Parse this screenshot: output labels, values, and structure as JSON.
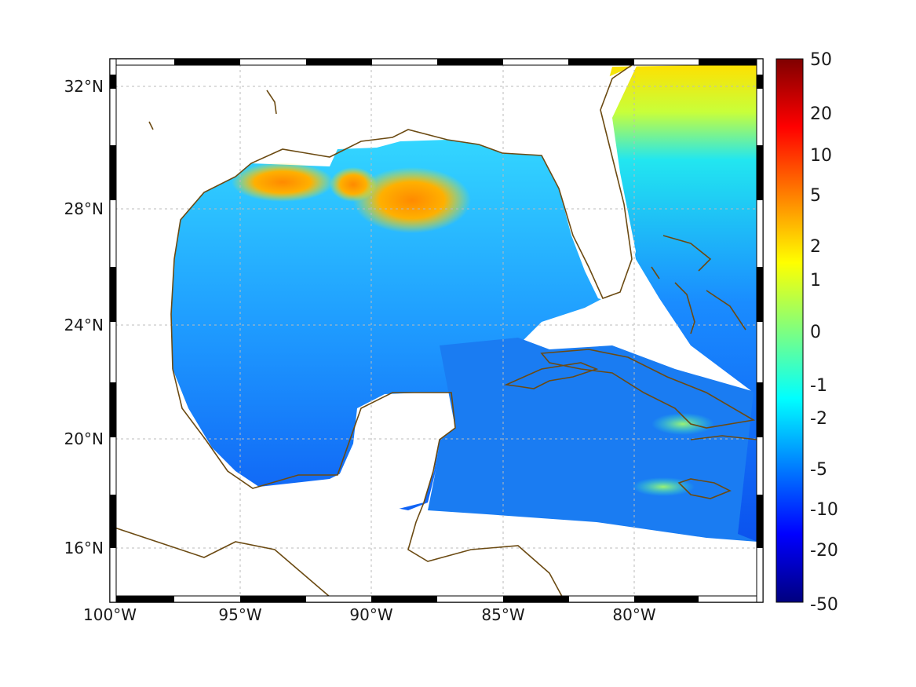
{
  "map": {
    "lon_ticks": [
      "100°W",
      "95°W",
      "90°W",
      "85°W",
      "80°W"
    ],
    "lat_ticks": [
      "32°N",
      "28°N",
      "24°N",
      "20°N",
      "16°N"
    ],
    "lon_values": [
      -100,
      -95,
      -90,
      -85,
      -80
    ],
    "lat_values": [
      32,
      28,
      24,
      20,
      16
    ],
    "lon_range": [
      -100,
      -75.2
    ],
    "lat_range": [
      14.2,
      33
    ],
    "grid": true,
    "coast_color": "#6b4a12"
  },
  "colorbar": {
    "labels": [
      "50",
      "20",
      "10",
      "5",
      "2",
      "1",
      "0",
      "-1",
      "-2",
      "-5",
      "-10",
      "-20",
      "-50"
    ],
    "colors": [
      "#7f0000",
      "#ff0000",
      "#ff7f00",
      "#ffff00",
      "#7fff7f",
      "#00ffff",
      "#007fff",
      "#0000ff",
      "#00007f"
    ]
  }
}
